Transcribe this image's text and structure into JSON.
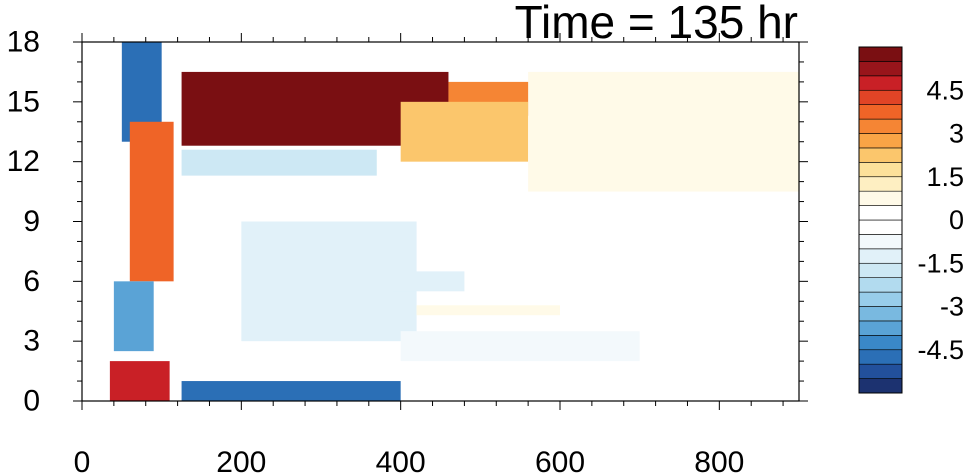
{
  "chart_data": {
    "type": "heatmap",
    "title": "Time = 135 hr",
    "xlabel": "",
    "ylabel": "",
    "xlim": [
      0,
      900
    ],
    "ylim": [
      0,
      18
    ],
    "x_ticks": [
      "0",
      "200",
      "400",
      "600",
      "800"
    ],
    "x_tick_values": [
      0,
      200,
      400,
      600,
      800
    ],
    "y_ticks": [
      "0",
      "3",
      "6",
      "9",
      "12",
      "15",
      "18"
    ],
    "y_tick_values": [
      0,
      3,
      6,
      9,
      12,
      15,
      18
    ],
    "colorbar": {
      "labels": [
        "4.5",
        "3",
        "1.5",
        "0",
        "-1.5",
        "-3",
        "-4.5"
      ],
      "label_values": [
        4.5,
        3,
        1.5,
        0,
        -1.5,
        -3,
        -4.5
      ],
      "levels": [
        -5.5,
        -5,
        -4.5,
        -4,
        -3.5,
        -3,
        -2.5,
        -2,
        -1.5,
        -1,
        -0.5,
        0,
        0.5,
        1,
        1.5,
        2,
        2.5,
        3,
        3.5,
        4,
        4.5,
        5,
        5.5
      ],
      "colors": [
        "#1c3270",
        "#22509c",
        "#2b6fb6",
        "#3a88c8",
        "#5aa3d6",
        "#79b9e0",
        "#98cdea",
        "#b2dbef",
        "#cde8f4",
        "#e1f1f9",
        "#f3f9fc",
        "#ffffff",
        "#ffffff",
        "#fffae8",
        "#feefc2",
        "#fde19a",
        "#fbc66c",
        "#f9a446",
        "#f58534",
        "#ef6427",
        "#e04426",
        "#c92026",
        "#98151b",
        "#7a0f12"
      ]
    },
    "features": [
      {
        "kind": "max",
        "x": [
          125,
          460
        ],
        "y": [
          12.8,
          16.5
        ],
        "value": 6.0
      },
      {
        "kind": "max",
        "x": [
          460,
          590
        ],
        "y": [
          14.3,
          16.0
        ],
        "value": 3.0
      },
      {
        "kind": "max",
        "x": [
          400,
          560
        ],
        "y": [
          12.0,
          15.0
        ],
        "value": 2.0
      },
      {
        "kind": "max",
        "x": [
          560,
          900
        ],
        "y": [
          10.5,
          16.5
        ],
        "value": 0.7
      },
      {
        "kind": "min",
        "x": [
          125,
          370
        ],
        "y": [
          11.3,
          12.6
        ],
        "value": -2.0
      },
      {
        "kind": "min",
        "x": [
          125,
          400
        ],
        "y": [
          0.0,
          1.0
        ],
        "value": -5.0
      },
      {
        "kind": "min",
        "x": [
          50,
          100
        ],
        "y": [
          13.0,
          18.0
        ],
        "value": -5.0
      },
      {
        "kind": "max",
        "x": [
          60,
          115
        ],
        "y": [
          6.0,
          14.0
        ],
        "value": 3.5
      },
      {
        "kind": "min",
        "x": [
          40,
          90
        ],
        "y": [
          2.5,
          6.0
        ],
        "value": -4.0
      },
      {
        "kind": "max",
        "x": [
          35,
          110
        ],
        "y": [
          0.0,
          2.0
        ],
        "value": 4.5
      },
      {
        "kind": "min",
        "x": [
          200,
          420
        ],
        "y": [
          3.0,
          9.0
        ],
        "value": -1.5
      },
      {
        "kind": "min",
        "x": [
          400,
          700
        ],
        "y": [
          2.0,
          3.5
        ],
        "value": -0.7
      },
      {
        "kind": "max",
        "x": [
          420,
          600
        ],
        "y": [
          4.3,
          4.8
        ],
        "value": 0.8
      },
      {
        "kind": "min",
        "x": [
          390,
          480
        ],
        "y": [
          5.5,
          6.5
        ],
        "value": -1.2
      }
    ]
  }
}
